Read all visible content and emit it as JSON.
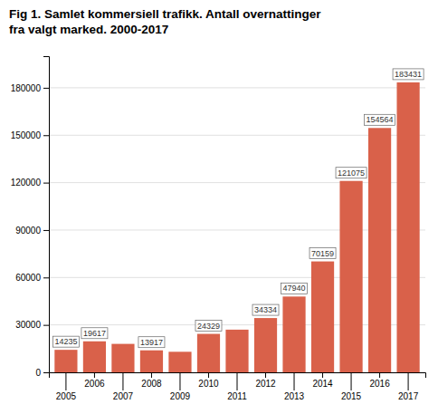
{
  "chart_data": {
    "type": "bar",
    "title": "Fig 1. Samlet kommersiell trafikk. Antall overnattinger\nfra valgt marked. 2000-2017",
    "categories": [
      "2005",
      "2006",
      "2007",
      "2008",
      "2009",
      "2010",
      "2011",
      "2012",
      "2013",
      "2014",
      "2015",
      "2016",
      "2017"
    ],
    "values": [
      14235,
      19617,
      18000,
      13917,
      13000,
      24329,
      27000,
      34334,
      47940,
      70159,
      121075,
      154564,
      183431
    ],
    "value_labels": [
      "14235",
      "19617",
      null,
      "13917",
      null,
      "24329",
      null,
      "34334",
      "47940",
      "70159",
      "121075",
      "154564",
      "183431"
    ],
    "data_labels": true,
    "color": "#D9614A",
    "ylim": [
      0,
      200000
    ],
    "yticks": [
      0,
      30000,
      60000,
      90000,
      120000,
      150000,
      180000
    ],
    "grid": true
  }
}
